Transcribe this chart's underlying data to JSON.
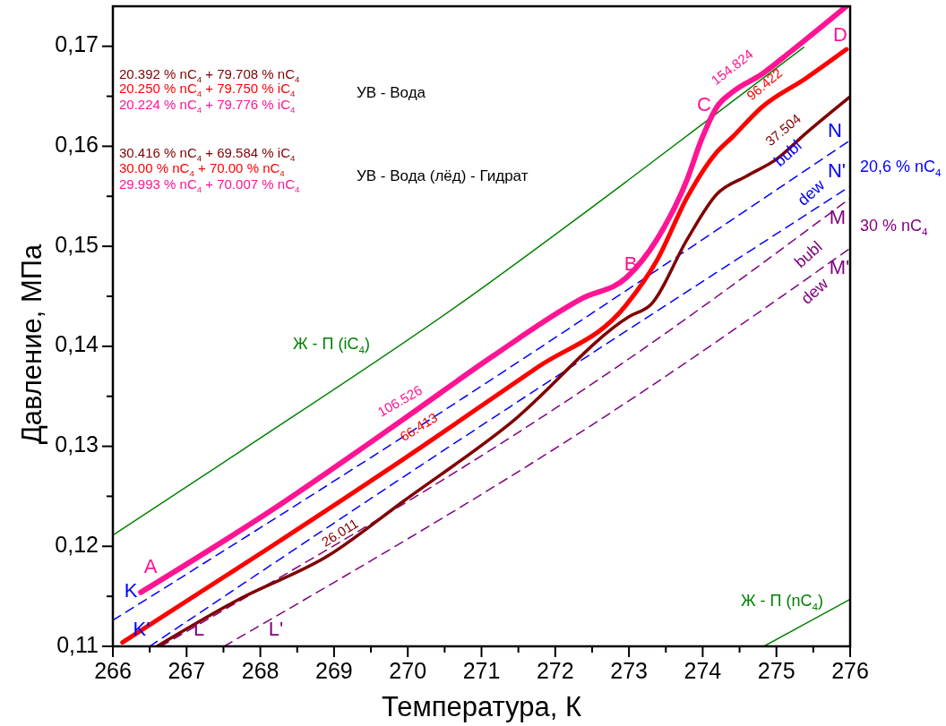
{
  "chart_data": {
    "type": "line",
    "xlabel": "Температура, К",
    "ylabel": "Давление, МПа",
    "xlim": [
      266,
      276
    ],
    "ylim": [
      0.11,
      0.174
    ],
    "xticks": [
      266,
      {
        "value": 266.5,
        "label": null
      },
      267,
      {
        "value": 267.5,
        "label": null
      },
      268,
      {
        "value": 268.5,
        "label": null
      },
      269,
      {
        "value": 269.5,
        "label": null
      },
      270,
      {
        "value": 270.5,
        "label": null
      },
      271,
      {
        "value": 271.5,
        "label": null
      },
      272,
      {
        "value": 272.5,
        "label": null
      },
      273,
      {
        "value": 273.5,
        "label": null
      },
      274,
      {
        "value": 274.5,
        "label": null
      },
      275,
      {
        "value": 275.5,
        "label": null
      },
      276
    ],
    "yticks": [
      {
        "value": 0.11,
        "label": "0,11"
      },
      {
        "value": 0.115,
        "label": null
      },
      {
        "value": 0.12,
        "label": "0,12"
      },
      {
        "value": 0.125,
        "label": null
      },
      {
        "value": 0.13,
        "label": "0,13"
      },
      {
        "value": 0.135,
        "label": null
      },
      {
        "value": 0.14,
        "label": "0,14"
      },
      {
        "value": 0.145,
        "label": null
      },
      {
        "value": 0.15,
        "label": "0,15"
      },
      {
        "value": 0.155,
        "label": null
      },
      {
        "value": 0.16,
        "label": "0,16"
      },
      {
        "value": 0.165,
        "label": null
      },
      {
        "value": 0.17,
        "label": "0,17"
      }
    ],
    "grid": false,
    "series": [
      {
        "color": "#008000",
        "line_style": "solid",
        "x": [
          266,
          267.75,
          270.7,
          272.97,
          274.19,
          275.37
        ],
        "values": [
          0.1211,
          0.1296,
          0.1442,
          0.1565,
          0.1633,
          0.1699
        ]
      },
      {
        "color": "#008000",
        "line_style": "solid",
        "x": [
          274.83,
          275.4,
          276
        ],
        "values": [
          0.11,
          0.1123,
          0.1147
        ]
      },
      {
        "color": "#0000ff",
        "line_style": "dashed",
        "x": [
          266,
          270.18,
          276
        ],
        "values": [
          0.1126,
          0.1321,
          0.1606
        ]
      },
      {
        "color": "#0000ff",
        "line_style": "dashed",
        "x": [
          266.5,
          270.18,
          276
        ],
        "values": [
          0.11,
          0.1281,
          0.156
        ]
      },
      {
        "color": "#800080",
        "line_style": "dashed",
        "x": [
          266.65,
          273.01,
          276
        ],
        "values": [
          0.11,
          0.1388,
          0.1548
        ]
      },
      {
        "color": "#800080",
        "line_style": "dashed",
        "x": [
          267.51,
          273.01,
          276
        ],
        "values": [
          0.11,
          0.1346,
          0.1498
        ]
      },
      {
        "color": "#800000",
        "line_style": "solid",
        "x": [
          266.6,
          267.71,
          268.93,
          269.94,
          271.39,
          273.01,
          273.3,
          273.79,
          274.19,
          274.59,
          275,
          275.4,
          275.99
        ],
        "values": [
          0.11,
          0.1147,
          0.1191,
          0.1245,
          0.1323,
          0.143,
          0.1442,
          0.1507,
          0.1552,
          0.157,
          0.1587,
          0.1613,
          0.1649
        ]
      },
      {
        "color": "#ff0000",
        "line_style": "solid",
        "x": [
          266.13,
          268.11,
          270.18,
          271.76,
          272.97,
          273.38,
          273.79,
          274.19,
          274.4,
          274.8,
          275.4,
          275.95
        ],
        "values": [
          0.1104,
          0.1198,
          0.1299,
          0.1379,
          0.1442,
          0.1486,
          0.1549,
          0.1594,
          0.1609,
          0.1639,
          0.1668,
          0.1697
        ]
      },
      {
        "color": "#ff1493",
        "line_style": "solid",
        "x": [
          266.38,
          268.11,
          269.94,
          271.15,
          272.37,
          272.97,
          273.38,
          273.79,
          273.98,
          274.19,
          274.4,
          274.8,
          275.2,
          275.95
        ],
        "values": [
          0.1154,
          0.1234,
          0.1327,
          0.139,
          0.1448,
          0.1469,
          0.1507,
          0.1567,
          0.1606,
          0.1639,
          0.1654,
          0.1672,
          0.1695,
          0.174
        ]
      }
    ],
    "annotations": [
      "20.392 % nC$_{4}$ + 79.708 % nC$_{4}$",
      "20.250 % nC$_{4}$ + 79.750 % iC$_{4}$",
      "20.224 % nC$_{4}$ + 79.776 % iC$_{4}$",
      "УВ - Вода",
      "30.416 % nC$_{4}$ + 69.584 % iC$_{4}$",
      "30.00 % nC$_{4}$ + 70.00 % nC$_{4}$",
      "29.993 % nC$_{4}$ + 70.007 % nC$_{4}$",
      "УВ - Вода (лёд) - Гидрат",
      "20,6 % nC$_{4}$",
      "30 % nC$_{4}$",
      "A",
      "B",
      "C",
      "D",
      "K",
      "K'",
      "N",
      "N'",
      "L",
      "L'",
      "M",
      "M'",
      "bubl",
      "dew",
      "bubl",
      "dew",
      "106.526",
      "66.413",
      "26.011",
      "154.824",
      "96.422",
      "37.504",
      "Ж - П (iC$_{4}$)",
      "Ж - П (nC$_{4}$)"
    ]
  }
}
